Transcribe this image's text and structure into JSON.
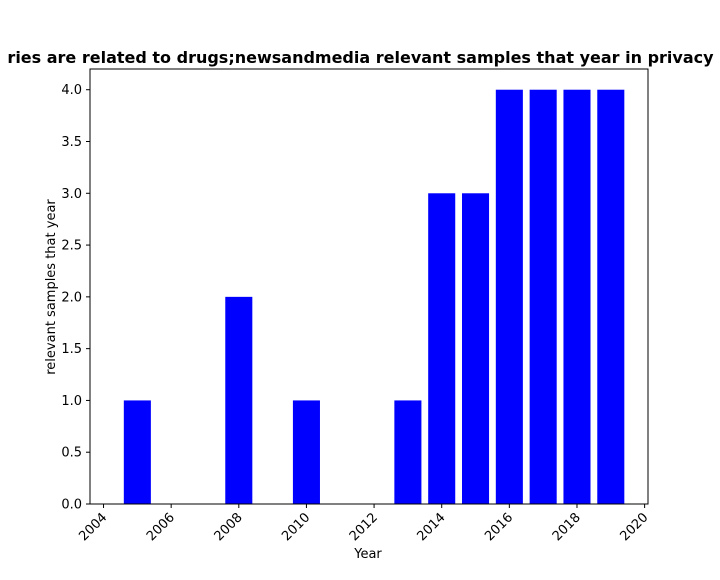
{
  "chart_data": {
    "type": "bar",
    "title": "Share of  queries are related to drugs;newsandmedia relevant samples that year in privacy policies",
    "title_visible": "ries are related to drugs;newsandmedia relevant samples that year in privacy p",
    "xlabel": "Year",
    "ylabel": "relevant samples that year",
    "x": [
      2005,
      2008,
      2010,
      2013,
      2014,
      2015,
      2016,
      2017,
      2018,
      2019
    ],
    "values": [
      1,
      2,
      1,
      1,
      3,
      3,
      4,
      4,
      4,
      4
    ],
    "xlim": [
      2003.6,
      2020.1
    ],
    "ylim": [
      0,
      4.2
    ],
    "xticks": [
      2004,
      2006,
      2008,
      2010,
      2012,
      2014,
      2016,
      2018,
      2020
    ],
    "yticks": [
      "0.0",
      "0.5",
      "1.0",
      "1.5",
      "2.0",
      "2.5",
      "3.0",
      "3.5",
      "4.0"
    ],
    "bar_color": "#0000ff",
    "grid": false,
    "legend": "none"
  }
}
